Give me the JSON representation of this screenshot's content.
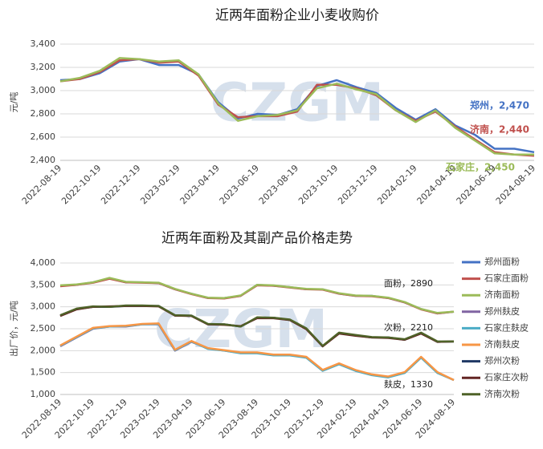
{
  "chart_data": [
    {
      "type": "line",
      "title": "近两年面粉企业小麦收购价",
      "y_label": "元/吨",
      "watermark": "CZGM",
      "categories": [
        "2022-08-19",
        null,
        "2022-10-19",
        null,
        "2022-12-19",
        null,
        "2023-02-19",
        null,
        "2023-04-19",
        null,
        "2023-06-19",
        null,
        "2023-08-19",
        null,
        "2023-10-19",
        null,
        "2023-12-19",
        null,
        "2024-02-19",
        null,
        "2024-04-19",
        null,
        "2024-06-19",
        null,
        "2024-08-19"
      ],
      "ylim": [
        2400,
        3400
      ],
      "yticks": [
        {
          "value": 2400,
          "label": "2,400"
        },
        {
          "value": 2600,
          "label": "2,600"
        },
        {
          "value": 2800,
          "label": "2,800"
        },
        {
          "value": 3000,
          "label": "3,000"
        },
        {
          "value": 3200,
          "label": "3,200"
        },
        {
          "value": 3400,
          "label": "3,400"
        }
      ],
      "series": [
        {
          "name": "郑州",
          "color": "#4472c4",
          "values": [
            3090,
            3100,
            3150,
            3250,
            3270,
            3220,
            3220,
            3140,
            2900,
            2760,
            2800,
            2790,
            2840,
            3040,
            3090,
            3030,
            2980,
            2850,
            2750,
            2840,
            2700,
            2620,
            2500,
            2500,
            2470
          ]
        },
        {
          "name": "济南",
          "color": "#c0504d",
          "values": [
            3080,
            3100,
            3160,
            3260,
            3270,
            3240,
            3250,
            3130,
            2880,
            2770,
            2780,
            2780,
            2820,
            3050,
            3050,
            3020,
            2960,
            2830,
            2740,
            2820,
            2690,
            2580,
            2470,
            2450,
            2440
          ]
        },
        {
          "name": "石家庄",
          "color": "#9bbb59",
          "values": [
            3080,
            3110,
            3170,
            3280,
            3270,
            3250,
            3260,
            3140,
            2890,
            2740,
            2780,
            2790,
            2830,
            3020,
            3060,
            3010,
            2970,
            2830,
            2730,
            2830,
            2680,
            2570,
            2460,
            2450,
            2450
          ]
        }
      ],
      "annotations": [
        "郑州，2,470",
        "济南，2,440",
        "石家庄，2,450"
      ]
    },
    {
      "type": "line",
      "title": "近两年面粉及其副产品价格走势",
      "y_label": "出厂价，元/吨",
      "watermark": "CZGM",
      "categories": [
        "2022-08-19",
        null,
        "2022-10-19",
        null,
        "2022-12-19",
        null,
        "2023-02-19",
        null,
        "2023-04-19",
        null,
        "2023-06-19",
        null,
        "2023-08-19",
        null,
        "2023-10-19",
        null,
        "2023-12-19",
        null,
        "2024-02-19",
        null,
        "2024-04-19",
        null,
        "2024-06-19",
        null,
        "2024-08-19"
      ],
      "ylim": [
        1000,
        4000
      ],
      "yticks": [
        {
          "value": 1000,
          "label": "1,000"
        },
        {
          "value": 1500,
          "label": "1,500"
        },
        {
          "value": 2000,
          "label": "2,000"
        },
        {
          "value": 2500,
          "label": "2,500"
        },
        {
          "value": 3000,
          "label": "3,000"
        },
        {
          "value": 3500,
          "label": "3,500"
        },
        {
          "value": 4000,
          "label": "4,000"
        }
      ],
      "series": [
        {
          "name": "郑州面粉",
          "color": "#4472c4",
          "values": [
            3480,
            3500,
            3560,
            3650,
            3560,
            3560,
            3540,
            3400,
            3300,
            3200,
            3200,
            3250,
            3500,
            3480,
            3450,
            3400,
            3400,
            3300,
            3250,
            3250,
            3200,
            3100,
            2950,
            2850,
            2890
          ]
        },
        {
          "name": "石家庄面粉",
          "color": "#c0504d",
          "values": [
            3470,
            3500,
            3550,
            3640,
            3560,
            3550,
            3540,
            3400,
            3290,
            3200,
            3190,
            3250,
            3490,
            3480,
            3440,
            3400,
            3390,
            3300,
            3250,
            3240,
            3200,
            3100,
            2940,
            2850,
            2890
          ]
        },
        {
          "name": "济南面粉",
          "color": "#9bbb59",
          "values": [
            3490,
            3510,
            3560,
            3660,
            3570,
            3560,
            3550,
            3410,
            3300,
            3210,
            3200,
            3260,
            3500,
            3490,
            3450,
            3410,
            3400,
            3310,
            3260,
            3250,
            3210,
            3110,
            2950,
            2860,
            2890
          ]
        },
        {
          "name": "郑州麸皮",
          "color": "#8064a2",
          "values": [
            2100,
            2300,
            2500,
            2550,
            2550,
            2600,
            2600,
            2000,
            2200,
            2050,
            2000,
            1950,
            1950,
            1900,
            1900,
            1850,
            1550,
            1700,
            1550,
            1450,
            1400,
            1500,
            1850,
            1500,
            1330
          ]
        },
        {
          "name": "石家庄麸皮",
          "color": "#4bacc6",
          "values": [
            2110,
            2310,
            2510,
            2550,
            2560,
            2600,
            2610,
            2010,
            2210,
            2040,
            2000,
            1940,
            1940,
            1890,
            1890,
            1840,
            1540,
            1690,
            1540,
            1440,
            1390,
            1490,
            1840,
            1490,
            1330
          ]
        },
        {
          "name": "济南麸皮",
          "color": "#f79646",
          "values": [
            2120,
            2320,
            2520,
            2560,
            2570,
            2610,
            2620,
            2020,
            2220,
            2060,
            2010,
            1960,
            1960,
            1910,
            1910,
            1860,
            1560,
            1710,
            1560,
            1460,
            1410,
            1510,
            1860,
            1510,
            1330
          ]
        },
        {
          "name": "郑州次粉",
          "color": "#1f3864",
          "values": [
            2800,
            2950,
            3000,
            3000,
            3020,
            3020,
            3020,
            2800,
            2800,
            2600,
            2600,
            2550,
            2750,
            2750,
            2700,
            2500,
            2100,
            2400,
            2350,
            2300,
            2300,
            2250,
            2400,
            2200,
            2210
          ]
        },
        {
          "name": "石家庄次粉",
          "color": "#632523",
          "values": [
            2790,
            2940,
            3000,
            3010,
            3020,
            3020,
            3010,
            2800,
            2790,
            2600,
            2590,
            2560,
            2740,
            2740,
            2700,
            2490,
            2100,
            2390,
            2340,
            2300,
            2290,
            2250,
            2390,
            2200,
            2210
          ]
        },
        {
          "name": "济南次粉",
          "color": "#4f6228",
          "values": [
            2810,
            2960,
            3010,
            3000,
            3030,
            3030,
            3020,
            2810,
            2800,
            2610,
            2600,
            2550,
            2760,
            2750,
            2710,
            2510,
            2110,
            2410,
            2360,
            2310,
            2300,
            2260,
            2410,
            2210,
            2210
          ]
        }
      ],
      "annotations": [
        "面粉，2890",
        "次粉，2210",
        "麸皮，1330"
      ]
    }
  ]
}
